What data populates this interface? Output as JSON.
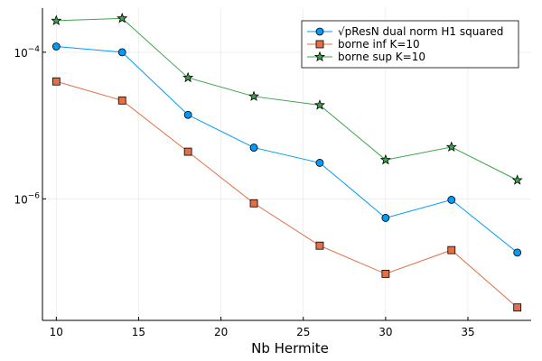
{
  "chart_data": {
    "type": "line",
    "title": "",
    "xlabel": "Nb Hermite",
    "ylabel": "",
    "x": [
      10,
      14,
      18,
      22,
      26,
      30,
      34,
      38
    ],
    "xlim": [
      9.16,
      38.84
    ],
    "ylim": [
      2.2e-08,
      0.0004
    ],
    "yscale": "log",
    "x_ticks": [
      10,
      15,
      20,
      25,
      30,
      35
    ],
    "x_tick_labels": [
      "10",
      "15",
      "20",
      "25",
      "30",
      "35"
    ],
    "y_ticks": [
      1e-06,
      0.0001
    ],
    "y_tick_labels": [
      {
        "base": "10",
        "exp": "−6"
      },
      {
        "base": "10",
        "exp": "−4"
      }
    ],
    "grid": true,
    "legend_position": "top-right",
    "series": [
      {
        "name": "√pResN dual norm H1 squared",
        "color": "#009AFA",
        "marker": "circle",
        "values": [
          0.00012,
          0.0001,
          1.4e-05,
          5e-06,
          3.1e-06,
          5.5e-07,
          9.7e-07,
          1.85e-07
        ]
      },
      {
        "name": "borne inf K=10",
        "color": "#E26F46",
        "marker": "square",
        "values": [
          4e-05,
          2.2e-05,
          4.4e-06,
          8.7e-07,
          2.3e-07,
          9.5e-08,
          2e-07,
          3.3e-08
        ]
      },
      {
        "name": "borne sup K=10",
        "color": "#3DA44D",
        "marker": "star",
        "values": [
          0.00027,
          0.00029,
          4.5e-05,
          2.5e-05,
          1.9e-05,
          3.4e-06,
          5.1e-06,
          1.8e-06
        ]
      }
    ]
  }
}
